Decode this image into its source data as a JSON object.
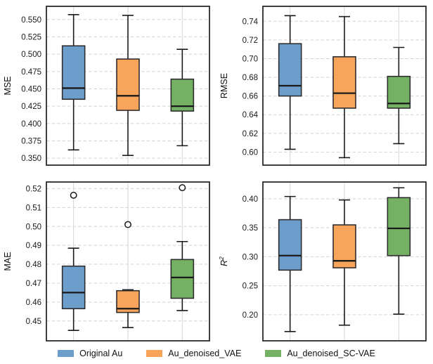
{
  "figure": {
    "background": "#ffffff"
  },
  "style": {
    "box_edge": "#2e2e2e",
    "line": "#1a1a1a",
    "grid": "#d4d4d4",
    "spine": "#2a2a2a",
    "outlier_fill": "#ffffff"
  },
  "legend": {
    "items": [
      {
        "label": "Original Au",
        "color": "#6d9dcb"
      },
      {
        "label": "Au_denoised_VAE",
        "color": "#f9a45b"
      },
      {
        "label": "Au_denoised_SC-VAE",
        "color": "#74b164"
      }
    ]
  },
  "chart_data": [
    {
      "type": "box",
      "panel": "top-left",
      "ylabel": "MSE",
      "ylabel_italic": false,
      "ylim": [
        0.34,
        0.569
      ],
      "ytick_values": [
        0.35,
        0.375,
        0.4,
        0.425,
        0.45,
        0.475,
        0.5,
        0.525,
        0.55
      ],
      "ytick_labels": [
        "0.350",
        "0.375",
        "0.400",
        "0.425",
        "0.450",
        "0.475",
        "0.500",
        "0.525",
        "0.550"
      ],
      "series": [
        {
          "name": "Original Au",
          "color": "#6d9dcb",
          "whisker_low": 0.362,
          "q1": 0.435,
          "median": 0.451,
          "q3": 0.512,
          "whisker_high": 0.557,
          "outliers": []
        },
        {
          "name": "Au_denoised_VAE",
          "color": "#f9a45b",
          "whisker_low": 0.354,
          "q1": 0.419,
          "median": 0.44,
          "q3": 0.493,
          "whisker_high": 0.556,
          "outliers": []
        },
        {
          "name": "Au_denoised_SC-VAE",
          "color": "#74b164",
          "whisker_low": 0.368,
          "q1": 0.418,
          "median": 0.425,
          "q3": 0.464,
          "whisker_high": 0.507,
          "outliers": []
        }
      ]
    },
    {
      "type": "box",
      "panel": "top-right",
      "ylabel": "RMSE",
      "ylabel_italic": false,
      "ylim": [
        0.586,
        0.756
      ],
      "ytick_values": [
        0.6,
        0.62,
        0.64,
        0.66,
        0.68,
        0.7,
        0.72,
        0.74
      ],
      "ytick_labels": [
        "0.60",
        "0.62",
        "0.64",
        "0.66",
        "0.68",
        "0.70",
        "0.72",
        "0.74"
      ],
      "series": [
        {
          "name": "Original Au",
          "color": "#6d9dcb",
          "whisker_low": 0.603,
          "q1": 0.66,
          "median": 0.671,
          "q3": 0.716,
          "whisker_high": 0.746,
          "outliers": []
        },
        {
          "name": "Au_denoised_VAE",
          "color": "#f9a45b",
          "whisker_low": 0.594,
          "q1": 0.647,
          "median": 0.663,
          "q3": 0.702,
          "whisker_high": 0.745,
          "outliers": []
        },
        {
          "name": "Au_denoised_SC-VAE",
          "color": "#74b164",
          "whisker_low": 0.609,
          "q1": 0.647,
          "median": 0.652,
          "q3": 0.681,
          "whisker_high": 0.712,
          "outliers": []
        }
      ]
    },
    {
      "type": "box",
      "panel": "bottom-left",
      "ylabel": "MAE",
      "ylabel_italic": false,
      "ylim": [
        0.4395,
        0.5235
      ],
      "ytick_values": [
        0.45,
        0.46,
        0.47,
        0.48,
        0.49,
        0.5,
        0.51,
        0.52
      ],
      "ytick_labels": [
        "0.45",
        "0.46",
        "0.47",
        "0.48",
        "0.49",
        "0.50",
        "0.51",
        "0.52"
      ],
      "series": [
        {
          "name": "Original Au",
          "color": "#6d9dcb",
          "whisker_low": 0.445,
          "q1": 0.4565,
          "median": 0.465,
          "q3": 0.479,
          "whisker_high": 0.4885,
          "outliers": [
            0.5165
          ]
        },
        {
          "name": "Au_denoised_VAE",
          "color": "#f9a45b",
          "whisker_low": 0.4465,
          "q1": 0.4545,
          "median": 0.4565,
          "q3": 0.466,
          "whisker_high": 0.4665,
          "outliers": [
            0.501
          ]
        },
        {
          "name": "Au_denoised_SC-VAE",
          "color": "#74b164",
          "whisker_low": 0.4555,
          "q1": 0.462,
          "median": 0.473,
          "q3": 0.4825,
          "whisker_high": 0.492,
          "outliers": [
            0.5205
          ]
        }
      ]
    },
    {
      "type": "box",
      "panel": "bottom-right",
      "ylabel": "R",
      "ylabel_sup": "2",
      "ylabel_italic": true,
      "ylim": [
        0.155,
        0.429
      ],
      "ytick_values": [
        0.2,
        0.25,
        0.3,
        0.35,
        0.4
      ],
      "ytick_labels": [
        "0.20",
        "0.25",
        "0.30",
        "0.35",
        "0.40"
      ],
      "series": [
        {
          "name": "Original Au",
          "color": "#6d9dcb",
          "whisker_low": 0.171,
          "q1": 0.277,
          "median": 0.302,
          "q3": 0.364,
          "whisker_high": 0.404,
          "outliers": []
        },
        {
          "name": "Au_denoised_VAE",
          "color": "#f9a45b",
          "whisker_low": 0.182,
          "q1": 0.281,
          "median": 0.293,
          "q3": 0.355,
          "whisker_high": 0.398,
          "outliers": []
        },
        {
          "name": "Au_denoised_SC-VAE",
          "color": "#74b164",
          "whisker_low": 0.201,
          "q1": 0.302,
          "median": 0.349,
          "q3": 0.402,
          "whisker_high": 0.419,
          "outliers": []
        }
      ]
    }
  ]
}
